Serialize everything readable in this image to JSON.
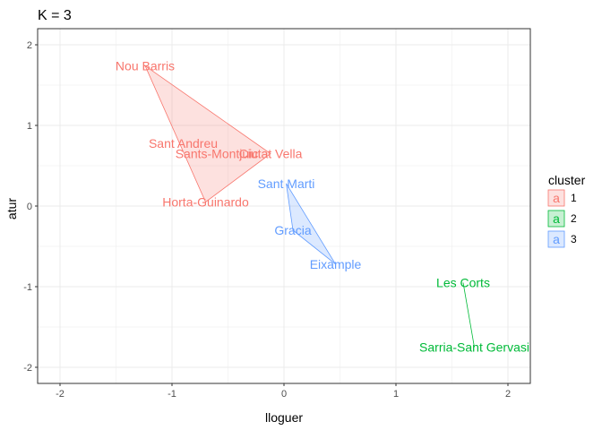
{
  "chart_data": {
    "type": "scatter",
    "title": "K = 3",
    "xlabel": "lloguer",
    "ylabel": "atur",
    "xlim": [
      -2.2,
      2.2
    ],
    "ylim": [
      -2.2,
      2.2
    ],
    "x_ticks": [
      -2,
      -1,
      0,
      1,
      2
    ],
    "y_ticks": [
      -2,
      -1,
      0,
      1,
      2
    ],
    "x_tick_labels": [
      "-2",
      "-1",
      "0",
      "1",
      "2"
    ],
    "y_tick_labels": [
      "-2",
      "-1",
      "0",
      "1",
      "2"
    ],
    "grid": true,
    "legend": {
      "title": "cluster",
      "position": "right",
      "key_glyph": "a",
      "entries": [
        {
          "label": "1",
          "color": "#F8766D"
        },
        {
          "label": "2",
          "color": "#00BA38"
        },
        {
          "label": "3",
          "color": "#619CFF"
        }
      ]
    },
    "points": [
      {
        "label": "Nou Barris",
        "x": -1.24,
        "y": 1.74,
        "cluster": "1"
      },
      {
        "label": "Sant Andreu",
        "x": -0.9,
        "y": 0.78,
        "cluster": "1"
      },
      {
        "label": "Ciutat Vella",
        "x": -0.12,
        "y": 0.65,
        "cluster": "1"
      },
      {
        "label": "Sants-Montjuic",
        "x": -0.6,
        "y": 0.65,
        "cluster": "1"
      },
      {
        "label": "Horta-Guinardo",
        "x": -0.7,
        "y": 0.05,
        "cluster": "1"
      },
      {
        "label": "Les Corts",
        "x": 1.6,
        "y": -0.95,
        "cluster": "2"
      },
      {
        "label": "Sarria-Sant Gervasi",
        "x": 1.7,
        "y": -1.75,
        "cluster": "2"
      },
      {
        "label": "Sant Marti",
        "x": 0.02,
        "y": 0.28,
        "cluster": "3"
      },
      {
        "label": "Gracia",
        "x": 0.08,
        "y": -0.3,
        "cluster": "3"
      },
      {
        "label": "Eixample",
        "x": 0.46,
        "y": -0.72,
        "cluster": "3"
      }
    ],
    "hulls": [
      {
        "cluster": "1",
        "points": [
          "Nou Barris",
          "Ciutat Vella",
          "Horta-Guinardo"
        ]
      },
      {
        "cluster": "2",
        "points": [
          "Les Corts",
          "Sarria-Sant Gervasi"
        ]
      },
      {
        "cluster": "3",
        "points": [
          "Sant Marti",
          "Eixample",
          "Gracia"
        ]
      }
    ]
  }
}
